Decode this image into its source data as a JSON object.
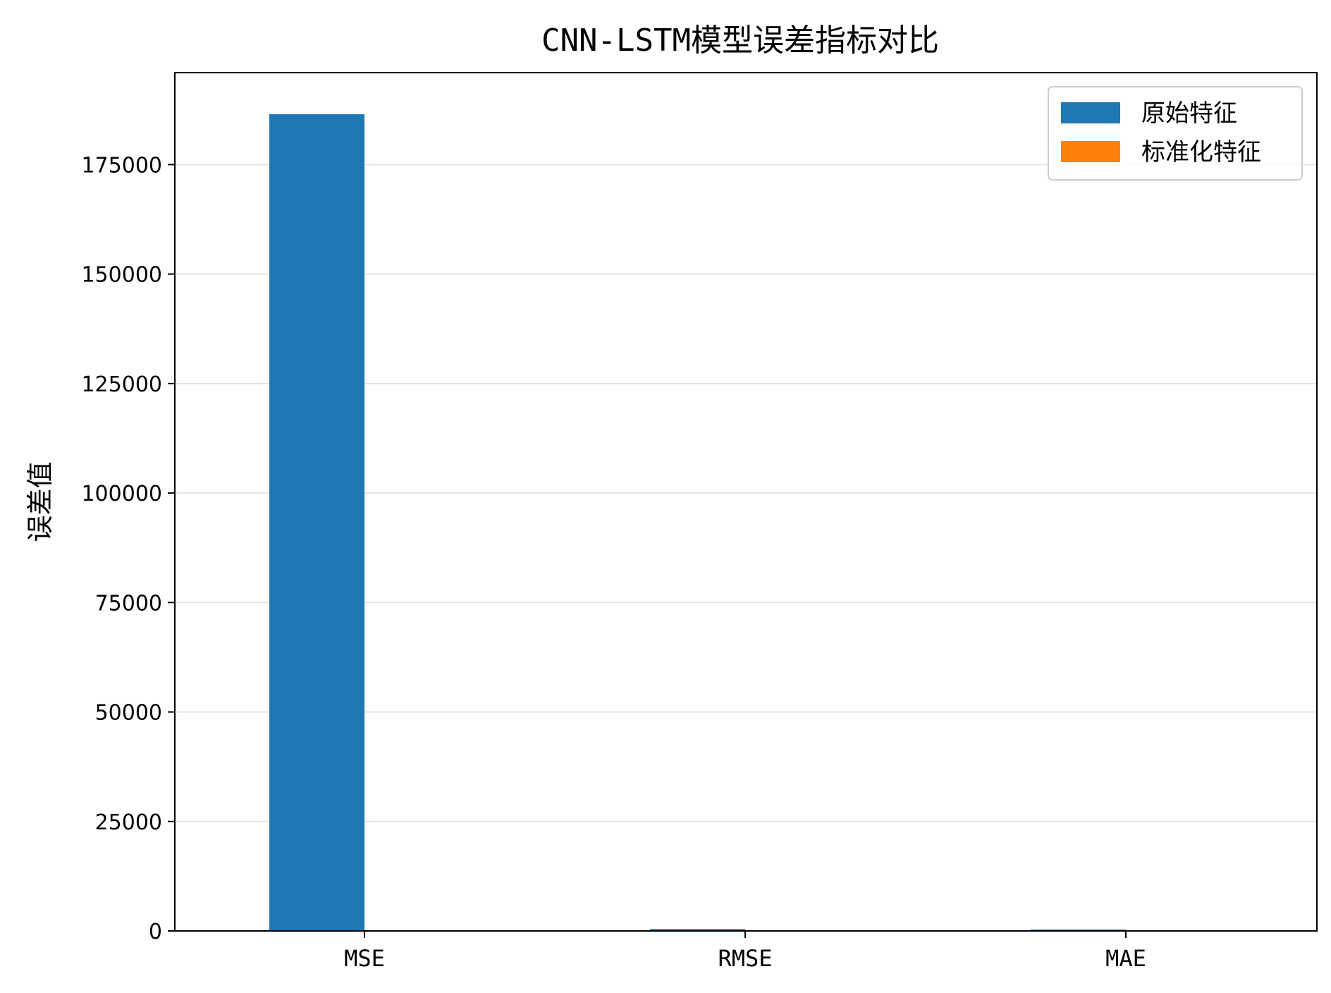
{
  "chart_data": {
    "type": "bar",
    "title": "CNN-LSTM模型误差指标对比",
    "xlabel": "",
    "ylabel": "误差值",
    "categories": [
      "MSE",
      "RMSE",
      "MAE"
    ],
    "series": [
      {
        "name": "原始特征",
        "color": "#1f77b4",
        "values": [
          186500,
          432,
          330
        ]
      },
      {
        "name": "标准化特征",
        "color": "#ff7f0e",
        "values": [
          0.05,
          0.22,
          0.17
        ]
      }
    ],
    "ylim": [
      0,
      196000
    ],
    "yticks": [
      0,
      25000,
      50000,
      75000,
      100000,
      125000,
      150000,
      175000
    ],
    "grid": {
      "axis": "y",
      "on": true
    },
    "legend": {
      "placement": "top-right"
    }
  }
}
